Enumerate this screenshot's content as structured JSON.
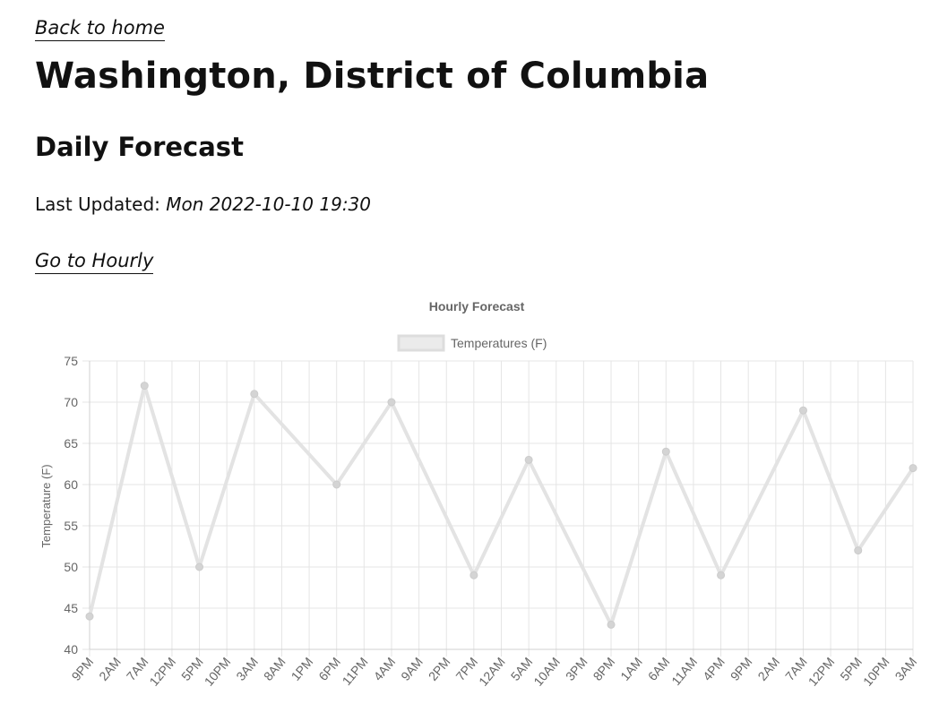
{
  "nav": {
    "back_label": "Back to home",
    "hourly_label": "Go to Hourly"
  },
  "header": {
    "city": "Washington, District of Columbia",
    "section": "Daily Forecast",
    "updated_label": "Last Updated: ",
    "updated_value": "Mon 2022-10-10 19:30"
  },
  "colors": {
    "line": "#e3e3e3",
    "point": "#d4d4d4",
    "grid": "#e5e5e5",
    "text": "#666666"
  },
  "chart_data": {
    "type": "line",
    "title": "Hourly Forecast",
    "ylabel": "Temperature (F)",
    "xlabel": "",
    "ylim": [
      40,
      75
    ],
    "yticks": [
      40,
      45,
      50,
      55,
      60,
      65,
      70,
      75
    ],
    "legend_position": "top",
    "grid": true,
    "categories": [
      "9PM",
      "2AM",
      "7AM",
      "12PM",
      "5PM",
      "10PM",
      "3AM",
      "8AM",
      "1PM",
      "6PM",
      "11PM",
      "4AM",
      "9AM",
      "2PM",
      "7PM",
      "12AM",
      "5AM",
      "10AM",
      "3PM",
      "8PM",
      "1AM",
      "6AM",
      "11AM",
      "4PM",
      "9PM",
      "2AM",
      "7AM",
      "12PM",
      "5PM",
      "10PM",
      "3AM"
    ],
    "series": [
      {
        "name": "Temperatures (F)",
        "points": [
          {
            "x": "9PM",
            "y": 44
          },
          {
            "x": "7AM",
            "y": 72
          },
          {
            "x": "5PM",
            "y": 50
          },
          {
            "x": "3AM",
            "y": 71
          },
          {
            "x": "6PM",
            "y": 60
          },
          {
            "x": "4AM",
            "y": 70
          },
          {
            "x": "7PM",
            "y": 49
          },
          {
            "x": "5AM",
            "y": 63
          },
          {
            "x": "8PM",
            "y": 43
          },
          {
            "x": "6AM",
            "y": 64
          },
          {
            "x": "4PM",
            "y": 49
          },
          {
            "x": "7AM",
            "y": 69
          },
          {
            "x": "5PM",
            "y": 52
          },
          {
            "x": "3AM",
            "y": 62
          }
        ]
      }
    ]
  }
}
